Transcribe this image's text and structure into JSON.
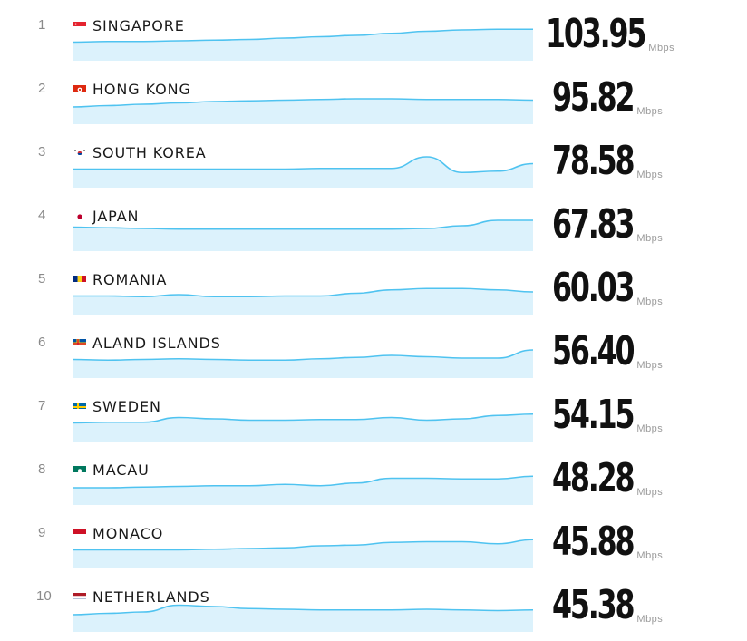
{
  "unit": "Mbps",
  "colors": {
    "line": "#4fc3f0",
    "fill": "#bfe8fa"
  },
  "chart_data": {
    "type": "line",
    "title": "",
    "rows": [
      {
        "rank": "1",
        "country": "SINGAPORE",
        "speed": "103.95",
        "flag": "sg",
        "trend": [
          30,
          31,
          31,
          32,
          33,
          34,
          36,
          38,
          40,
          43,
          46,
          48,
          49,
          49
        ]
      },
      {
        "rank": "2",
        "country": "HONG KONG",
        "speed": "95.82",
        "flag": "hk",
        "trend": [
          28,
          30,
          32,
          34,
          36,
          37,
          38,
          39,
          40,
          40,
          39,
          39,
          39,
          38
        ]
      },
      {
        "rank": "3",
        "country": "SOUTH KOREA",
        "speed": "78.58",
        "flag": "kr",
        "trend": [
          30,
          30,
          30,
          30,
          30,
          30,
          30,
          31,
          31,
          31,
          48,
          25,
          27,
          38
        ]
      },
      {
        "rank": "4",
        "country": "JAPAN",
        "speed": "67.83",
        "flag": "jp",
        "trend": [
          38,
          37,
          36,
          35,
          35,
          35,
          35,
          35,
          35,
          35,
          36,
          40,
          48,
          48
        ]
      },
      {
        "rank": "5",
        "country": "ROMANIA",
        "speed": "60.03",
        "flag": "ro",
        "trend": [
          30,
          30,
          29,
          32,
          29,
          29,
          30,
          30,
          34,
          39,
          41,
          41,
          39,
          36
        ]
      },
      {
        "rank": "6",
        "country": "ALAND ISLANDS",
        "speed": "56.40",
        "flag": "ax",
        "trend": [
          30,
          29,
          30,
          31,
          30,
          29,
          29,
          31,
          33,
          36,
          34,
          32,
          32,
          44
        ]
      },
      {
        "rank": "7",
        "country": "SWEDEN",
        "speed": "54.15",
        "flag": "se",
        "trend": [
          30,
          31,
          31,
          38,
          36,
          34,
          34,
          35,
          35,
          38,
          34,
          36,
          41,
          43
        ]
      },
      {
        "rank": "8",
        "country": "MACAU",
        "speed": "48.28",
        "flag": "mo",
        "trend": [
          28,
          28,
          29,
          30,
          31,
          31,
          33,
          31,
          35,
          42,
          42,
          41,
          41,
          45
        ]
      },
      {
        "rank": "9",
        "country": "MONACO",
        "speed": "45.88",
        "flag": "mc",
        "trend": [
          30,
          30,
          30,
          30,
          31,
          32,
          33,
          36,
          37,
          41,
          42,
          42,
          39,
          45
        ]
      },
      {
        "rank": "10",
        "country": "NETHERLANDS",
        "speed": "45.38",
        "flag": "nl",
        "trend": [
          28,
          30,
          32,
          42,
          40,
          37,
          36,
          35,
          35,
          35,
          36,
          35,
          34,
          35
        ]
      }
    ]
  }
}
